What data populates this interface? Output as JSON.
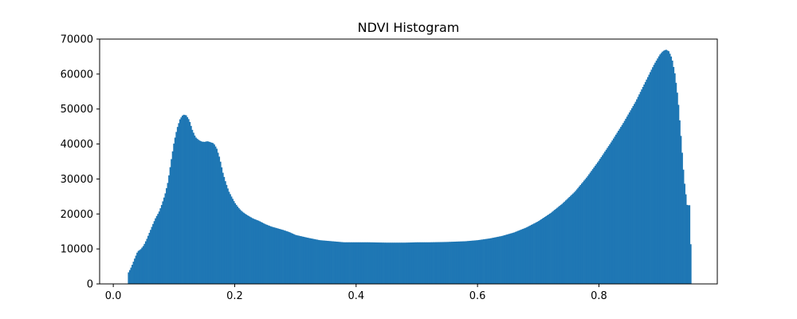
{
  "chart_data": {
    "type": "bar",
    "title": "NDVI Histogram",
    "xlabel": "",
    "ylabel": "",
    "xlim": [
      -0.0225,
      0.995
    ],
    "ylim": [
      0,
      70000
    ],
    "grid": false,
    "legend": "none",
    "bar_color": "#1f77b4",
    "x_ticks": [
      0.0,
      0.2,
      0.4,
      0.6,
      0.8
    ],
    "x_tick_labels": [
      "0.0",
      "0.2",
      "0.4",
      "0.6",
      "0.8"
    ],
    "y_ticks": [
      0,
      10000,
      20000,
      30000,
      40000,
      50000,
      60000,
      70000
    ],
    "y_tick_labels": [
      "0",
      "10000",
      "20000",
      "30000",
      "40000",
      "50000",
      "60000",
      "70000"
    ],
    "bin_range": [
      0.024,
      0.952
    ],
    "profile": {
      "x": [
        0.024,
        0.026,
        0.03,
        0.035,
        0.04,
        0.045,
        0.05,
        0.055,
        0.06,
        0.065,
        0.07,
        0.075,
        0.08,
        0.085,
        0.09,
        0.095,
        0.1,
        0.105,
        0.11,
        0.115,
        0.12,
        0.125,
        0.13,
        0.135,
        0.14,
        0.145,
        0.15,
        0.155,
        0.16,
        0.165,
        0.17,
        0.175,
        0.18,
        0.185,
        0.19,
        0.195,
        0.2,
        0.205,
        0.21,
        0.215,
        0.22,
        0.23,
        0.24,
        0.25,
        0.26,
        0.27,
        0.28,
        0.29,
        0.3,
        0.32,
        0.34,
        0.36,
        0.38,
        0.4,
        0.42,
        0.45,
        0.48,
        0.5,
        0.52,
        0.55,
        0.58,
        0.6,
        0.62,
        0.64,
        0.66,
        0.68,
        0.7,
        0.72,
        0.74,
        0.76,
        0.78,
        0.8,
        0.82,
        0.84,
        0.86,
        0.87,
        0.88,
        0.89,
        0.9,
        0.905,
        0.91,
        0.915,
        0.92,
        0.925,
        0.93,
        0.935,
        0.94,
        0.945,
        0.948,
        0.95,
        0.952
      ],
      "y": [
        3000,
        3600,
        5000,
        7200,
        9300,
        9900,
        11000,
        12800,
        14900,
        17000,
        19000,
        20500,
        22800,
        25500,
        29200,
        35000,
        40500,
        44500,
        47200,
        48400,
        48200,
        46800,
        44000,
        42000,
        41200,
        40700,
        40600,
        40800,
        40500,
        40200,
        38800,
        36000,
        32000,
        29000,
        26500,
        24800,
        23200,
        22000,
        21000,
        20300,
        19700,
        18700,
        18000,
        17100,
        16400,
        15900,
        15400,
        14800,
        14000,
        13200,
        12500,
        12200,
        11900,
        11900,
        11900,
        11800,
        11800,
        11900,
        11900,
        12000,
        12200,
        12500,
        13000,
        13700,
        14700,
        16100,
        17900,
        20200,
        23000,
        26300,
        30500,
        35300,
        40500,
        46000,
        52000,
        55500,
        59000,
        62500,
        65500,
        66500,
        67000,
        66500,
        64500,
        60000,
        53000,
        42000,
        30000,
        22500,
        22500,
        22500,
        0
      ]
    }
  }
}
